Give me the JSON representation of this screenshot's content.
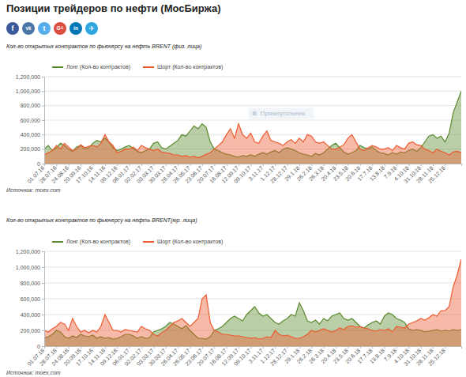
{
  "header": {
    "title": "Позиции трейдеров по нефти (МосБиржа)",
    "share_buttons": [
      "f",
      "vk",
      "t",
      "G+",
      "in",
      "✈"
    ]
  },
  "chart_data": [
    {
      "type": "area",
      "title": "Кол-во открытых контрактов по фьючерсу на нефть BRENT (физ. лица)",
      "annotations": [
        "Прямоугольник"
      ],
      "source": "Источник: moex.com",
      "categories": [
        "01.07.16",
        null,
        null,
        "28.07.16",
        null,
        null,
        "24.08.16",
        null,
        null,
        "20.09.16",
        null,
        null,
        "17.10.16",
        null,
        null,
        "14.11.16",
        null,
        null,
        "09.12.16",
        null,
        null,
        "06.01.17",
        null,
        null,
        "02.02.17",
        null,
        null,
        "03.03.17",
        null,
        null,
        "30.03.17",
        null,
        null,
        "26.04.17",
        null,
        null,
        "26.05.17",
        null,
        null,
        "23.06.17",
        null,
        null,
        "20.07.17",
        null,
        null,
        "16.08.17",
        null,
        null,
        "12.09.17",
        null,
        null,
        "09.10.17",
        null,
        null,
        "3.11.17",
        null,
        null,
        "1.12.17",
        null,
        null,
        "28.12.17",
        null,
        null,
        "29.1.18",
        null,
        null,
        "26.2.18",
        null,
        null,
        "26.3.18",
        null,
        null,
        "20.4.18",
        null,
        null,
        "23.5.18",
        null,
        null,
        "20.6.18",
        null,
        null,
        "17.7.18",
        null,
        null,
        "13.8.18",
        null,
        null,
        "7.9.18",
        null,
        null,
        "4.10.18",
        null,
        null,
        "31.10.18",
        null,
        null,
        "28.11.18",
        null,
        null,
        "25.12.18",
        null,
        null,
        null,
        null
      ],
      "series": [
        {
          "name": "Лонг (Кол-во контрактов)",
          "color": "#5a8a2e",
          "values": [
            200000,
            250000,
            180000,
            220000,
            280000,
            250000,
            200000,
            170000,
            230000,
            250000,
            200000,
            220000,
            280000,
            320000,
            300000,
            350000,
            300000,
            220000,
            180000,
            200000,
            230000,
            250000,
            210000,
            170000,
            150000,
            180000,
            200000,
            280000,
            300000,
            220000,
            200000,
            240000,
            280000,
            320000,
            400000,
            380000,
            450000,
            520000,
            480000,
            550000,
            500000,
            300000,
            200000,
            180000,
            150000,
            130000,
            120000,
            100000,
            90000,
            110000,
            100000,
            120000,
            100000,
            130000,
            150000,
            130000,
            160000,
            180000,
            150000,
            200000,
            220000,
            200000,
            180000,
            150000,
            130000,
            120000,
            100000,
            140000,
            120000,
            150000,
            200000,
            250000,
            280000,
            220000,
            160000,
            130000,
            150000,
            180000,
            250000,
            220000,
            200000,
            230000,
            180000,
            150000,
            140000,
            120000,
            150000,
            130000,
            160000,
            150000,
            180000,
            200000,
            170000,
            220000,
            300000,
            380000,
            400000,
            350000,
            380000,
            300000,
            420000,
            700000,
            850000,
            1000000
          ]
        },
        {
          "name": "Шорт (Кол-во контрактов)",
          "color": "#ee5a2f",
          "values": [
            120000,
            150000,
            180000,
            250000,
            200000,
            280000,
            230000,
            180000,
            200000,
            260000,
            220000,
            240000,
            250000,
            230000,
            280000,
            400000,
            300000,
            250000,
            150000,
            170000,
            200000,
            200000,
            230000,
            180000,
            250000,
            220000,
            200000,
            180000,
            200000,
            160000,
            150000,
            140000,
            120000,
            120000,
            100000,
            110000,
            90000,
            100000,
            80000,
            100000,
            130000,
            150000,
            200000,
            250000,
            300000,
            400000,
            480000,
            350000,
            550000,
            400000,
            350000,
            420000,
            300000,
            280000,
            380000,
            450000,
            320000,
            300000,
            280000,
            250000,
            300000,
            330000,
            280000,
            350000,
            300000,
            400000,
            380000,
            300000,
            280000,
            300000,
            250000,
            200000,
            200000,
            230000,
            260000,
            350000,
            400000,
            300000,
            200000,
            180000,
            220000,
            250000,
            230000,
            200000,
            200000,
            220000,
            180000,
            250000,
            220000,
            200000,
            280000,
            300000,
            260000,
            250000,
            200000,
            180000,
            150000,
            200000,
            170000,
            150000,
            120000,
            160000,
            170000,
            150000
          ]
        }
      ],
      "ylim": [
        0,
        1200000
      ],
      "yticks": [
        0,
        {
          "value": 200000,
          "label": "200,000"
        },
        {
          "value": 400000,
          "label": "400,000"
        },
        {
          "value": 600000,
          "label": "600,000"
        },
        {
          "value": 800000,
          "label": "800,000"
        },
        {
          "value": 1000000,
          "label": "1,000,000"
        },
        {
          "value": 1200000,
          "label": "1,200,000"
        }
      ],
      "grid": true,
      "legend": "top-left"
    },
    {
      "type": "area",
      "title": "Кол-во открытых контрактов по фьючерсу на нефть BRENT(юр. лица)",
      "source": "Источник: moex.com",
      "categories": [
        "01.07.16",
        null,
        null,
        "28.07.16",
        null,
        null,
        "24.08.16",
        null,
        null,
        "20.09.16",
        null,
        null,
        "17.10.16",
        null,
        null,
        "14.11.16",
        null,
        null,
        "09.12.16",
        null,
        null,
        "06.01.17",
        null,
        null,
        "02.02.17",
        null,
        null,
        "03.03.17",
        null,
        null,
        "30.03.17",
        null,
        null,
        "26.04.17",
        null,
        null,
        "26.05.17",
        null,
        null,
        "23.06.17",
        null,
        null,
        "20.07.17",
        null,
        null,
        "16.08.17",
        null,
        null,
        "12.09.17",
        null,
        null,
        "09.10.17",
        null,
        null,
        "3.11.17",
        null,
        null,
        "1.12.17",
        null,
        null,
        "28.12.17",
        null,
        null,
        "29.1.18",
        null,
        null,
        "26.2.18",
        null,
        null,
        "26.3.18",
        null,
        null,
        "20.4.18",
        null,
        null,
        "23.5.18",
        null,
        null,
        "20.6.18",
        null,
        null,
        "17.7.18",
        null,
        null,
        "13.8.18",
        null,
        null,
        "7.9.18",
        null,
        null,
        "4.10.18",
        null,
        null,
        "31.10.18",
        null,
        null,
        "28.11.18",
        null,
        null,
        "25.12.18",
        null,
        null,
        null,
        null
      ],
      "series": [
        {
          "name": "Лонг (Кол-во контрактов)",
          "color": "#5a8a2e",
          "values": [
            100000,
            120000,
            150000,
            200000,
            180000,
            120000,
            100000,
            130000,
            110000,
            150000,
            130000,
            120000,
            140000,
            100000,
            120000,
            100000,
            110000,
            90000,
            100000,
            120000,
            150000,
            150000,
            130000,
            100000,
            120000,
            100000,
            110000,
            180000,
            200000,
            220000,
            250000,
            300000,
            280000,
            250000,
            220000,
            260000,
            200000,
            150000,
            100000,
            100000,
            90000,
            120000,
            200000,
            220000,
            250000,
            300000,
            350000,
            380000,
            350000,
            320000,
            400000,
            450000,
            500000,
            420000,
            380000,
            400000,
            350000,
            300000,
            280000,
            320000,
            350000,
            400000,
            380000,
            550000,
            450000,
            320000,
            300000,
            330000,
            280000,
            350000,
            320000,
            380000,
            400000,
            420000,
            350000,
            330000,
            350000,
            300000,
            250000,
            230000,
            270000,
            300000,
            320000,
            280000,
            380000,
            420000,
            400000,
            350000,
            330000,
            300000,
            220000,
            200000,
            210000,
            200000,
            180000,
            190000,
            200000,
            210000,
            190000,
            200000,
            190000,
            210000,
            200000,
            210000
          ]
        },
        {
          "name": "Шорт (Кол-во контрактов)",
          "color": "#ee5a2f",
          "values": [
            200000,
            180000,
            220000,
            250000,
            300000,
            280000,
            200000,
            350000,
            250000,
            180000,
            200000,
            170000,
            200000,
            180000,
            250000,
            400000,
            300000,
            200000,
            200000,
            180000,
            210000,
            200000,
            190000,
            180000,
            250000,
            220000,
            200000,
            150000,
            130000,
            170000,
            200000,
            250000,
            300000,
            320000,
            350000,
            300000,
            250000,
            300000,
            350000,
            600000,
            650000,
            300000,
            200000,
            180000,
            150000,
            150000,
            140000,
            130000,
            130000,
            120000,
            110000,
            100000,
            110000,
            90000,
            100000,
            120000,
            110000,
            200000,
            150000,
            130000,
            140000,
            120000,
            100000,
            100000,
            120000,
            150000,
            200000,
            180000,
            200000,
            220000,
            200000,
            180000,
            200000,
            230000,
            210000,
            250000,
            260000,
            240000,
            250000,
            230000,
            220000,
            200000,
            190000,
            210000,
            200000,
            220000,
            180000,
            250000,
            240000,
            230000,
            280000,
            300000,
            320000,
            350000,
            330000,
            360000,
            400000,
            380000,
            450000,
            450000,
            500000,
            750000,
            900000,
            1100000
          ]
        }
      ],
      "ylim": [
        0,
        1200000
      ],
      "yticks": [
        0,
        {
          "value": 200000,
          "label": "200,000"
        },
        {
          "value": 400000,
          "label": "400,000"
        },
        {
          "value": 600000,
          "label": "600,000"
        },
        {
          "value": 800000,
          "label": "800,000"
        },
        {
          "value": 1000000,
          "label": "1,000,000"
        },
        {
          "value": 1200000,
          "label": "1,200,000"
        }
      ],
      "grid": true,
      "legend": "top-left"
    }
  ]
}
